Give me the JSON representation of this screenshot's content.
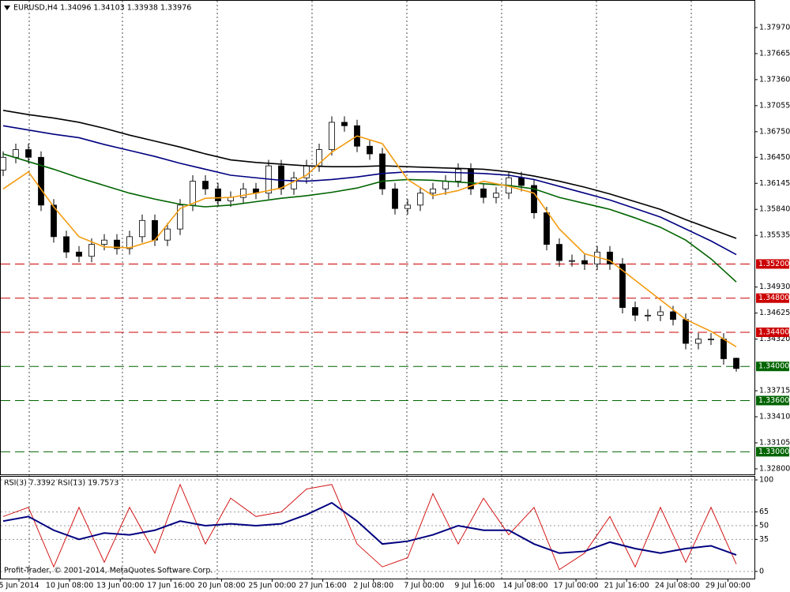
{
  "chart_data": [
    {
      "type": "candlestick",
      "title": "EURUSD,H4  1.34096 1.34103 1.33938 1.33976",
      "open": [
        1.363,
        1.3645,
        1.3654,
        1.3645,
        1.3589,
        1.3552,
        1.3534,
        1.3529,
        1.3543,
        1.3548,
        1.3538,
        1.3552,
        1.3571,
        1.3548,
        1.3561,
        1.3589,
        1.3617,
        1.3608,
        1.3594,
        1.3598,
        1.3608,
        1.3603,
        1.3635,
        1.3608,
        1.3621,
        1.3635,
        1.3654,
        1.3686,
        1.3682,
        1.3658,
        1.3649,
        1.3608,
        1.3585,
        1.3589,
        1.3603,
        1.3608,
        1.3617,
        1.3631,
        1.3608,
        1.3598,
        1.3603,
        1.3621,
        1.3612,
        1.358,
        1.3543,
        1.3524,
        1.3524,
        1.352,
        1.3534,
        1.352,
        1.3469,
        1.346,
        1.346,
        1.3464,
        1.3455,
        1.3427,
        1.3432,
        1.3432,
        1.34096
      ],
      "high": [
        1.3652,
        1.3661,
        1.3661,
        1.3652,
        1.3596,
        1.3559,
        1.3541,
        1.355,
        1.3555,
        1.3555,
        1.3559,
        1.3578,
        1.3578,
        1.3568,
        1.3596,
        1.3624,
        1.3624,
        1.3615,
        1.3605,
        1.3615,
        1.3615,
        1.3642,
        1.3642,
        1.3628,
        1.3642,
        1.3661,
        1.3693,
        1.3693,
        1.3689,
        1.3665,
        1.3656,
        1.3615,
        1.3596,
        1.361,
        1.3615,
        1.3624,
        1.3638,
        1.3638,
        1.3615,
        1.361,
        1.3628,
        1.3628,
        1.3619,
        1.3587,
        1.355,
        1.3531,
        1.3531,
        1.3541,
        1.3541,
        1.3527,
        1.3476,
        1.3467,
        1.3471,
        1.3471,
        1.3462,
        1.3439,
        1.3439,
        1.3439,
        1.34103
      ],
      "low": [
        1.3623,
        1.3638,
        1.3638,
        1.3582,
        1.3545,
        1.3527,
        1.3522,
        1.3522,
        1.3536,
        1.3531,
        1.3531,
        1.3545,
        1.3541,
        1.3541,
        1.3554,
        1.3582,
        1.3601,
        1.3587,
        1.3587,
        1.3591,
        1.3596,
        1.3596,
        1.3601,
        1.3601,
        1.3614,
        1.3628,
        1.3647,
        1.3675,
        1.3651,
        1.3642,
        1.3601,
        1.3578,
        1.3578,
        1.3582,
        1.3596,
        1.3601,
        1.361,
        1.3601,
        1.3591,
        1.3591,
        1.3596,
        1.3605,
        1.3573,
        1.3536,
        1.3517,
        1.3517,
        1.3513,
        1.3513,
        1.3513,
        1.3462,
        1.3453,
        1.3453,
        1.3453,
        1.3448,
        1.342,
        1.342,
        1.3425,
        1.3402,
        1.33938
      ],
      "close": [
        1.3645,
        1.3654,
        1.3645,
        1.3589,
        1.3552,
        1.3534,
        1.3529,
        1.3543,
        1.3548,
        1.3538,
        1.3552,
        1.3571,
        1.3548,
        1.3561,
        1.3589,
        1.3617,
        1.3608,
        1.3594,
        1.3598,
        1.3608,
        1.3603,
        1.3635,
        1.3608,
        1.3621,
        1.3635,
        1.3654,
        1.3686,
        1.3682,
        1.3658,
        1.3649,
        1.3608,
        1.3585,
        1.3589,
        1.3603,
        1.3608,
        1.3617,
        1.3631,
        1.3608,
        1.3598,
        1.3603,
        1.3621,
        1.3612,
        1.358,
        1.3543,
        1.3524,
        1.3524,
        1.352,
        1.3534,
        1.352,
        1.3469,
        1.346,
        1.346,
        1.3464,
        1.3455,
        1.3427,
        1.3432,
        1.3432,
        1.3409,
        1.33976
      ],
      "overlays": [
        {
          "color": "#000000",
          "values": [
            1.37,
            1.3695,
            1.3691,
            1.3686,
            1.3679,
            1.3671,
            1.3664,
            1.3657,
            1.3649,
            1.3642,
            1.3639,
            1.3637,
            1.3635,
            1.3634,
            1.3634,
            1.3635,
            1.3634,
            1.3633,
            1.3632,
            1.3631,
            1.3628,
            1.3623,
            1.3617,
            1.361,
            1.3602,
            1.3593,
            1.3584,
            1.3572,
            1.3561,
            1.355
          ]
        },
        {
          "color": "#000080",
          "values": [
            1.3682,
            1.3677,
            1.3672,
            1.3668,
            1.366,
            1.3653,
            1.3646,
            1.3638,
            1.3631,
            1.3624,
            1.3621,
            1.3618,
            1.3617,
            1.3619,
            1.3622,
            1.3626,
            1.3628,
            1.3628,
            1.3627,
            1.3626,
            1.3624,
            1.3619,
            1.3611,
            1.3603,
            1.3595,
            1.3585,
            1.3575,
            1.3561,
            1.3547,
            1.3531
          ]
        },
        {
          "color": "#006400",
          "values": [
            1.3649,
            1.364,
            1.3631,
            1.3621,
            1.3612,
            1.3603,
            1.3596,
            1.359,
            1.3587,
            1.3589,
            1.3593,
            1.3597,
            1.36,
            1.3604,
            1.3609,
            1.3617,
            1.3619,
            1.3618,
            1.3616,
            1.3614,
            1.3612,
            1.3608,
            1.3598,
            1.3591,
            1.3584,
            1.3574,
            1.3563,
            1.3548,
            1.3526,
            1.3499
          ]
        },
        {
          "color": "#f39c12",
          "values": [
            1.3608,
            1.3628,
            1.3587,
            1.3552,
            1.354,
            1.3539,
            1.3548,
            1.3585,
            1.3597,
            1.3598,
            1.3603,
            1.3609,
            1.3624,
            1.3651,
            1.367,
            1.3661,
            1.3619,
            1.36,
            1.3606,
            1.3617,
            1.3611,
            1.3603,
            1.3561,
            1.3532,
            1.3524,
            1.3501,
            1.3478,
            1.3455,
            1.3441,
            1.3423
          ]
        }
      ],
      "levels": [
        {
          "value": 1.352,
          "label": "1.35200",
          "color": "#cc0000"
        },
        {
          "value": 1.348,
          "label": "1.34800",
          "color": "#cc0000"
        },
        {
          "value": 1.344,
          "label": "1.34400",
          "color": "#cc0000"
        },
        {
          "value": 1.34,
          "label": "1.34000",
          "color": "#006400"
        },
        {
          "value": 1.336,
          "label": "1.33600",
          "color": "#006400"
        },
        {
          "value": 1.33,
          "label": "1.33000",
          "color": "#006400"
        }
      ],
      "ylim": [
        1.32735,
        1.38293
      ],
      "yticks": [
        {
          "value": 1.3797,
          "label": "1.37970"
        },
        {
          "value": 1.37665,
          "label": "1.37665"
        },
        {
          "value": 1.3736,
          "label": "1.37360"
        },
        {
          "value": 1.37055,
          "label": "1.37055"
        },
        {
          "value": 1.3675,
          "label": "1.36750"
        },
        {
          "value": 1.3645,
          "label": "1.36450"
        },
        {
          "value": 1.36145,
          "label": "1.36145"
        },
        {
          "value": 1.3584,
          "label": "1.35840"
        },
        {
          "value": 1.35535,
          "label": "1.35535"
        },
        {
          "value": 1.3493,
          "label": "1.34930"
        },
        {
          "value": 1.34625,
          "label": "1.34625"
        },
        {
          "value": 1.3432,
          "label": "1.34320"
        },
        {
          "value": 1.33715,
          "label": "1.33715"
        },
        {
          "value": 1.3341,
          "label": "1.33410"
        },
        {
          "value": 1.33105,
          "label": "1.33105"
        },
        {
          "value": 1.328,
          "label": "1.32800"
        }
      ]
    },
    {
      "type": "line",
      "title": "RSI(3) 7.3392  RSI(13) 19.7573",
      "series": [
        {
          "color": "#d00000",
          "values": [
            60,
            70,
            5,
            70,
            10,
            70,
            20,
            95,
            30,
            80,
            60,
            65,
            90,
            95,
            30,
            5,
            15,
            85,
            30,
            80,
            40,
            70,
            2,
            20,
            60,
            5,
            70,
            10,
            70,
            8
          ]
        },
        {
          "color": "#000080",
          "values": [
            55,
            60,
            45,
            35,
            42,
            40,
            45,
            55,
            50,
            52,
            50,
            52,
            62,
            75,
            55,
            30,
            33,
            40,
            50,
            45,
            45,
            30,
            20,
            22,
            32,
            25,
            20,
            25,
            28,
            18
          ]
        }
      ],
      "ylim": [
        -7.8,
        104.3
      ],
      "yticks": [
        0,
        35,
        50,
        65,
        100
      ],
      "grid": true
    }
  ],
  "time_labels": [
    "5 Jun 2014",
    "10 Jun 08:00",
    "13 Jun 00:00",
    "17 Jun 16:00",
    "20 Jun 08:00",
    "25 Jun 00:00",
    "27 Jun 16:00",
    "2 Jul 08:00",
    "7 Jul 00:00",
    "9 Jul 16:00",
    "14 Jul 08:00",
    "17 Jul 00:00",
    "21 Jul 16:00",
    "24 Jul 08:00",
    "29 Jul 00:00"
  ],
  "footer": "Profit-Trader, © 2001-2014, MetaQuotes Software Corp."
}
